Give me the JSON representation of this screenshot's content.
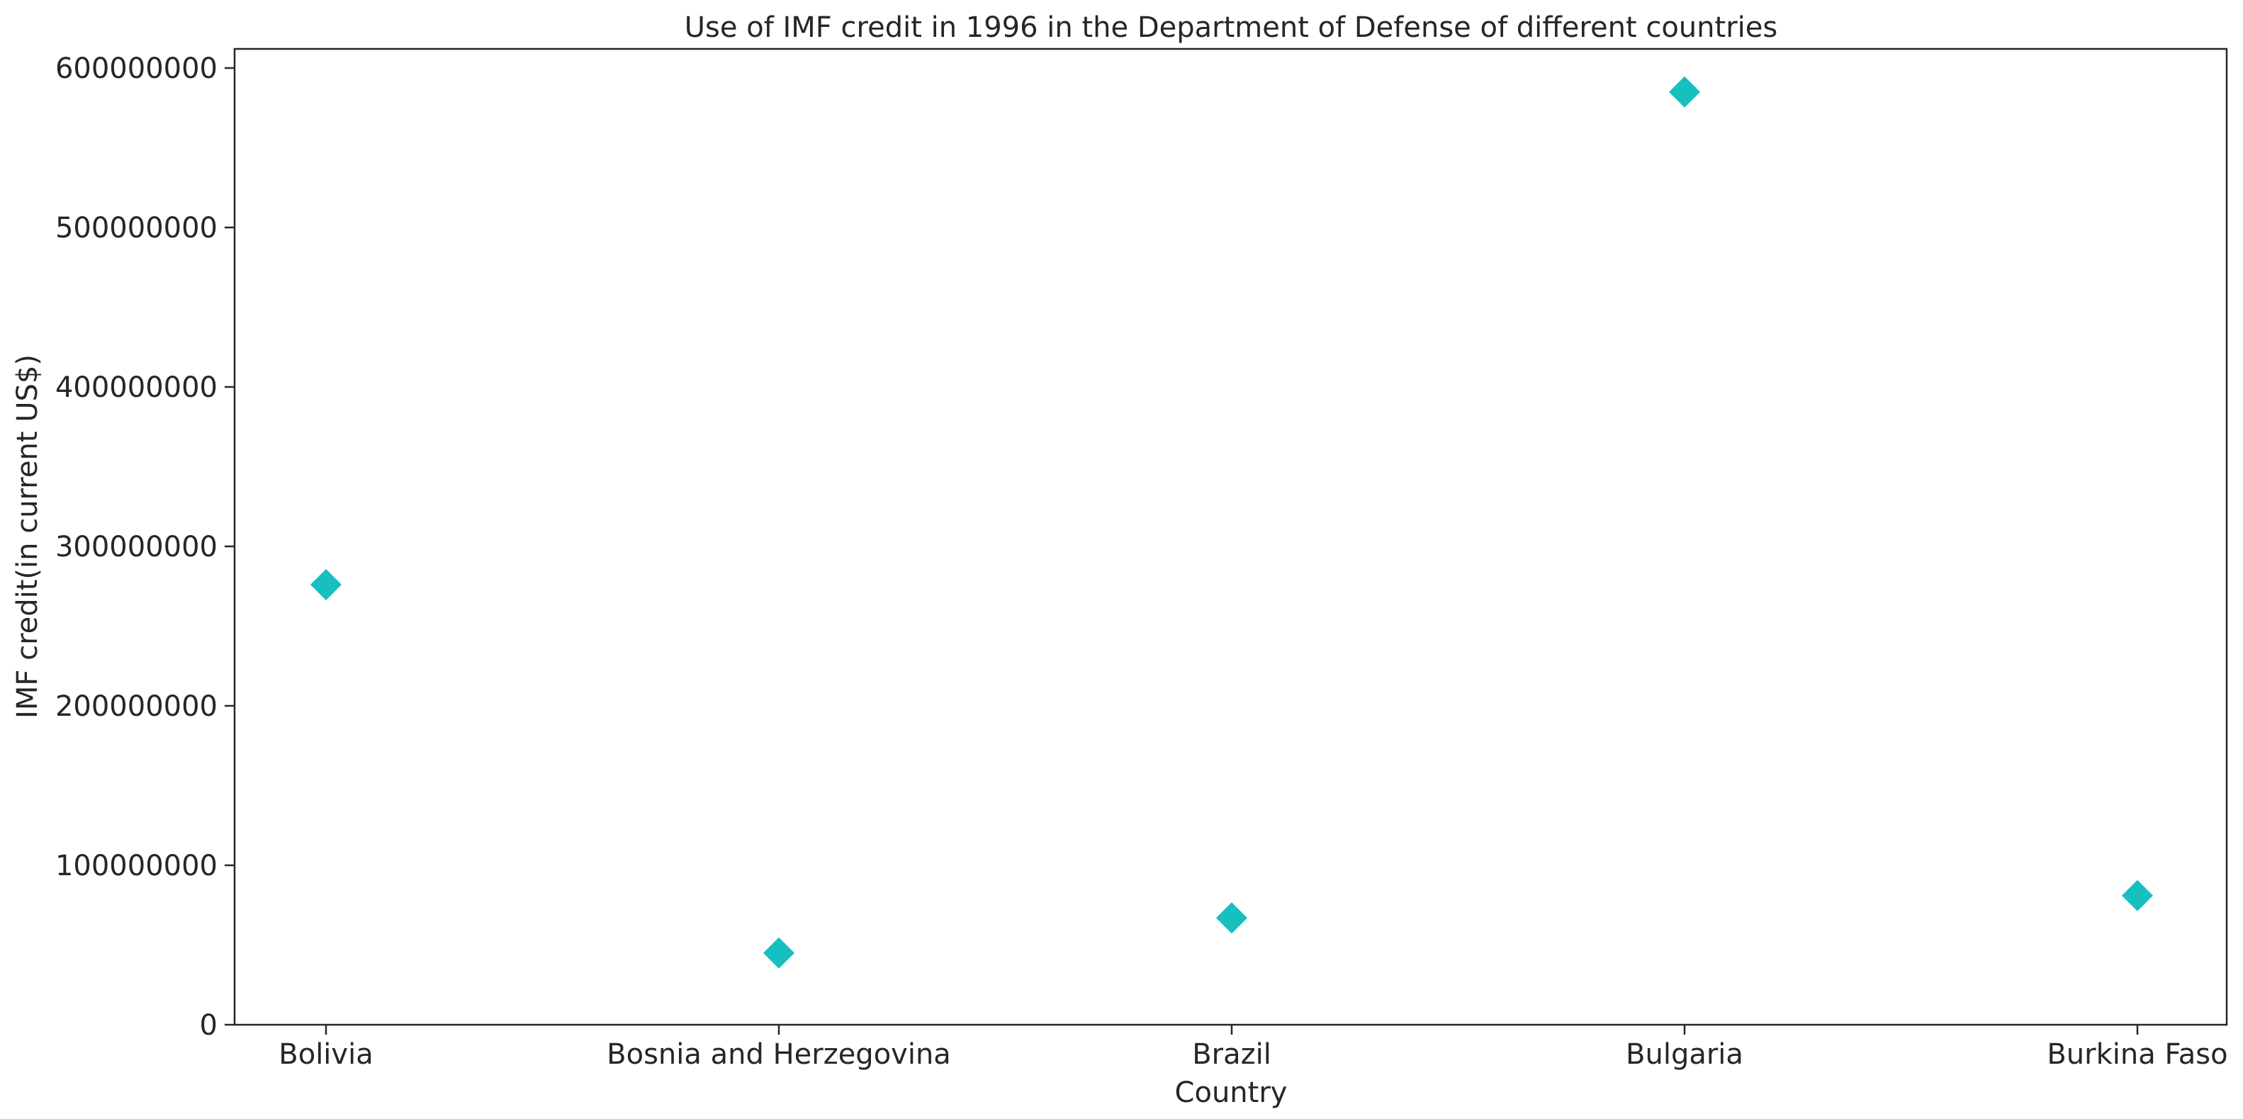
{
  "chart_data": {
    "type": "scatter",
    "title": "Use of IMF credit in 1996 in the Department of Defense of different countries",
    "xlabel": "Country",
    "ylabel": "IMF credit(in current US$)",
    "categories": [
      "Bolivia",
      "Bosnia and Herzegovina",
      "Brazil",
      "Bulgaria",
      "Burkina Faso"
    ],
    "values": [
      276000000,
      45000000,
      67000000,
      585000000,
      81000000
    ],
    "ylim": [
      0,
      612000000
    ],
    "yticks": [
      0,
      100000000,
      200000000,
      300000000,
      400000000,
      500000000,
      600000000
    ],
    "ytick_labels": [
      "0",
      "100000000",
      "200000000",
      "300000000",
      "400000000",
      "500000000",
      "600000000"
    ],
    "marker": "diamond",
    "marker_color": "#17bfbf",
    "grid": false
  }
}
